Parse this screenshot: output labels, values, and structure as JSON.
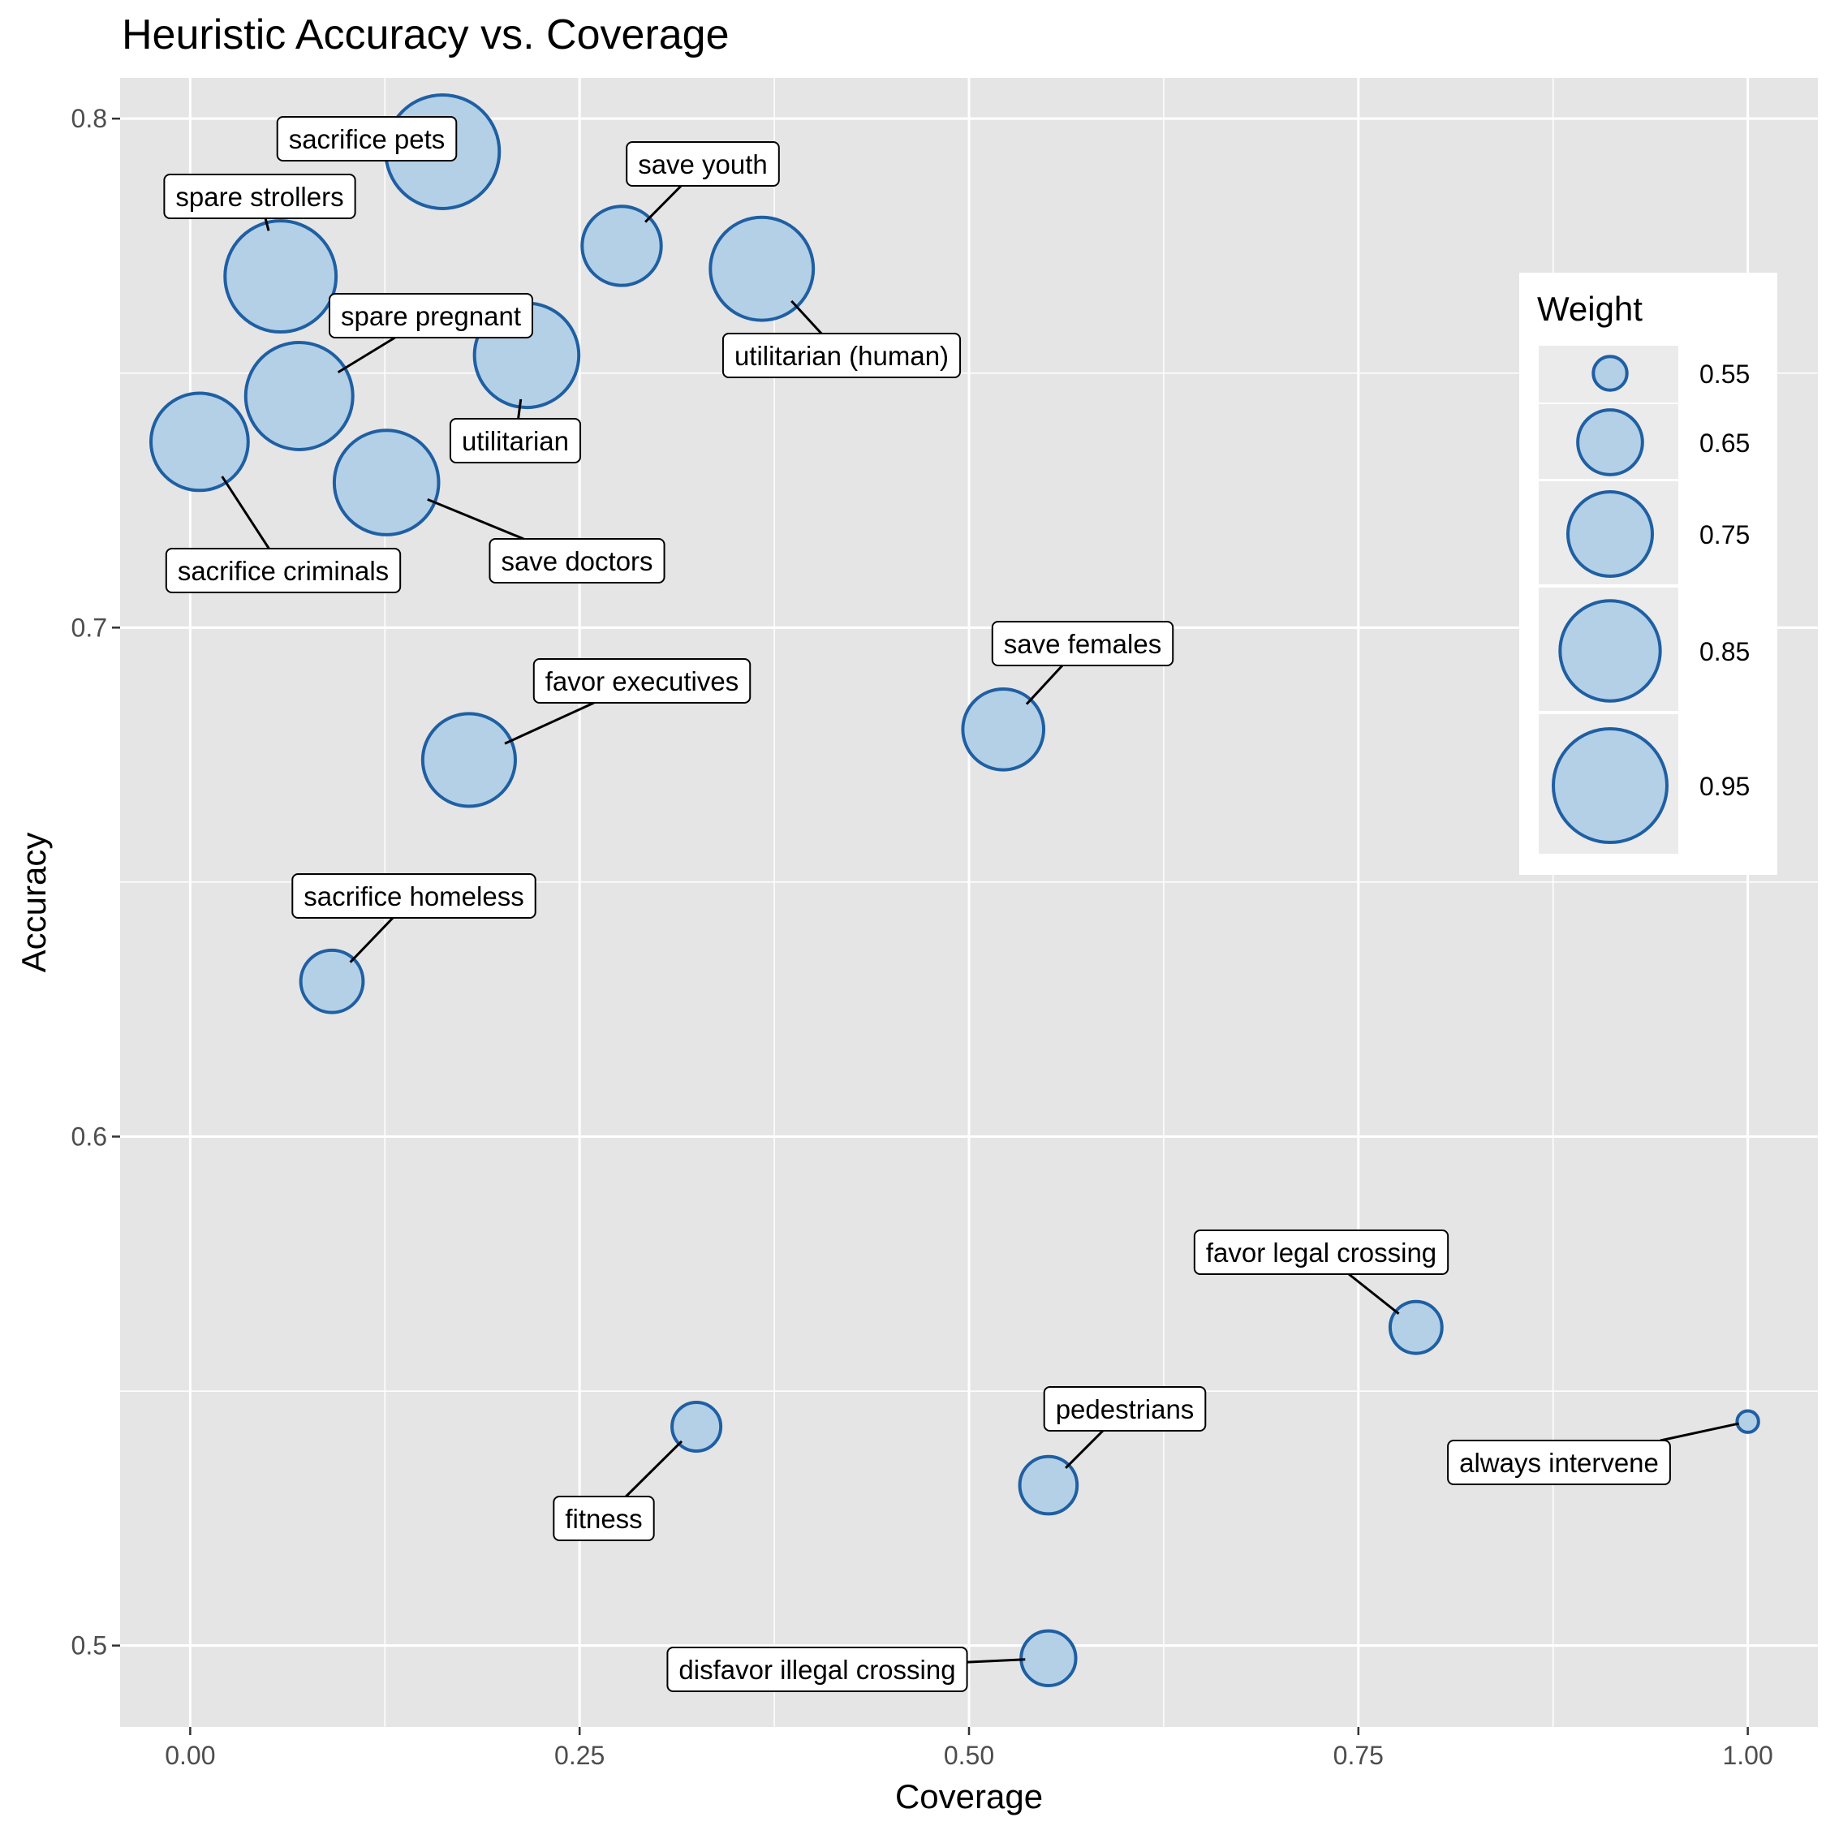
{
  "chart_data": {
    "type": "scatter",
    "title": "Heuristic Accuracy vs. Coverage",
    "xlabel": "Coverage",
    "ylabel": "Accuracy",
    "xlim": [
      -0.045,
      1.045
    ],
    "ylim": [
      0.484,
      0.808
    ],
    "xticks": [
      0.0,
      0.25,
      0.5,
      0.75,
      1.0
    ],
    "xtick_labels": [
      "0.00",
      "0.25",
      "0.50",
      "0.75",
      "1.00"
    ],
    "yticks": [
      0.5,
      0.6,
      0.7,
      0.8
    ],
    "ytick_labels": [
      "0.5",
      "0.6",
      "0.7",
      "0.8"
    ],
    "grid": true,
    "size_legend": {
      "title": "Weight",
      "position": "right",
      "entries": [
        {
          "label": "0.55",
          "value": 0.55
        },
        {
          "label": "0.65",
          "value": 0.65
        },
        {
          "label": "0.75",
          "value": 0.75
        },
        {
          "label": "0.85",
          "value": 0.85
        },
        {
          "label": "0.95",
          "value": 0.95
        }
      ]
    },
    "colors": {
      "fill": "#b3d0e6",
      "stroke": "#1f5fa3",
      "panel": "#e5e5e5",
      "grid": "#ffffff"
    },
    "points": [
      {
        "label": "sacrifice pets",
        "x": 0.162,
        "y": 0.7935,
        "weight": 0.95
      },
      {
        "label": "save youth",
        "x": 0.277,
        "y": 0.775,
        "weight": 0.72
      },
      {
        "label": "spare strollers",
        "x": 0.058,
        "y": 0.769,
        "weight": 0.93
      },
      {
        "label": "utilitarian (human)",
        "x": 0.367,
        "y": 0.7705,
        "weight": 0.87
      },
      {
        "label": "spare pregnant",
        "x": 0.07,
        "y": 0.7455,
        "weight": 0.9
      },
      {
        "label": "utilitarian",
        "x": 0.216,
        "y": 0.7535,
        "weight": 0.88
      },
      {
        "label": "sacrifice criminals",
        "x": 0.006,
        "y": 0.7365,
        "weight": 0.83
      },
      {
        "label": "save doctors",
        "x": 0.126,
        "y": 0.7285,
        "weight": 0.88
      },
      {
        "label": "save females",
        "x": 0.522,
        "y": 0.68,
        "weight": 0.73
      },
      {
        "label": "favor executives",
        "x": 0.179,
        "y": 0.674,
        "weight": 0.8
      },
      {
        "label": "sacrifice homeless",
        "x": 0.091,
        "y": 0.6305,
        "weight": 0.64
      },
      {
        "label": "favor legal crossing",
        "x": 0.787,
        "y": 0.5625,
        "weight": 0.6
      },
      {
        "label": "fitness",
        "x": 0.325,
        "y": 0.543,
        "weight": 0.59
      },
      {
        "label": "pedestrians",
        "x": 0.551,
        "y": 0.5315,
        "weight": 0.62
      },
      {
        "label": "always intervene",
        "x": 1.0,
        "y": 0.544,
        "weight": 0.53
      },
      {
        "label": "disfavor illegal crossing",
        "x": 0.551,
        "y": 0.4975,
        "weight": 0.61
      }
    ]
  }
}
